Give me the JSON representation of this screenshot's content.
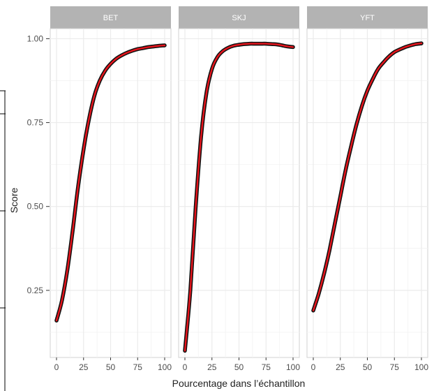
{
  "chart_data": {
    "type": "line",
    "facets": [
      "BET",
      "SKJ",
      "YFT"
    ],
    "xlabel": "Pourcentage dans l’échantillon",
    "ylabel": "Score",
    "xlim": [
      0,
      100
    ],
    "ylim": [
      0.05,
      1.03
    ],
    "x_ticks": [
      0,
      25,
      50,
      75,
      100
    ],
    "y_ticks": [
      0.25,
      0.5,
      0.75,
      1.0
    ],
    "y_tick_labels": [
      "0.25",
      "0.50",
      "0.75",
      "1.00"
    ],
    "grid": true,
    "colors": {
      "fit": "#e8141c",
      "band": "#111111",
      "strip": "#b3b3b3",
      "panel_border": "#d0d0d0",
      "grid": "#ebebeb"
    },
    "series": [
      {
        "facet": "BET",
        "x": [
          0,
          5,
          10,
          15,
          20,
          25,
          30,
          35,
          40,
          45,
          50,
          55,
          60,
          65,
          70,
          75,
          80,
          85,
          90,
          95,
          100
        ],
        "y": [
          0.16,
          0.22,
          0.31,
          0.43,
          0.56,
          0.67,
          0.76,
          0.83,
          0.875,
          0.905,
          0.925,
          0.94,
          0.95,
          0.958,
          0.964,
          0.969,
          0.972,
          0.975,
          0.977,
          0.979,
          0.98
        ]
      },
      {
        "facet": "SKJ",
        "x": [
          0,
          5,
          10,
          15,
          20,
          25,
          30,
          35,
          40,
          45,
          50,
          55,
          60,
          65,
          70,
          75,
          80,
          85,
          90,
          95,
          100
        ],
        "y": [
          0.07,
          0.25,
          0.5,
          0.71,
          0.84,
          0.91,
          0.945,
          0.963,
          0.973,
          0.979,
          0.982,
          0.984,
          0.985,
          0.985,
          0.985,
          0.985,
          0.984,
          0.983,
          0.98,
          0.977,
          0.975
        ]
      },
      {
        "facet": "YFT",
        "x": [
          0,
          5,
          10,
          15,
          20,
          25,
          30,
          35,
          40,
          45,
          50,
          55,
          60,
          65,
          70,
          75,
          80,
          85,
          90,
          95,
          100
        ],
        "y": [
          0.19,
          0.24,
          0.3,
          0.37,
          0.45,
          0.53,
          0.61,
          0.68,
          0.745,
          0.8,
          0.845,
          0.88,
          0.91,
          0.93,
          0.947,
          0.96,
          0.968,
          0.975,
          0.98,
          0.984,
          0.986
        ]
      }
    ]
  }
}
